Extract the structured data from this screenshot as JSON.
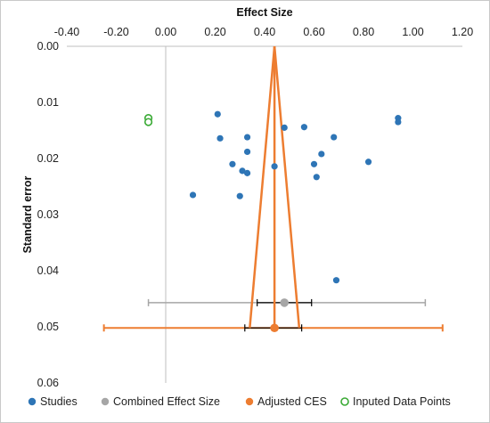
{
  "chart_data": {
    "type": "scatter",
    "title": "",
    "xlabel": "Effect Size",
    "ylabel": "Standard error",
    "xlim": [
      -0.4,
      1.2
    ],
    "ylim": [
      0.0,
      0.06
    ],
    "y_reversed": true,
    "x_axis_position": "top",
    "x_ticks": [
      "-0.40",
      "-0.20",
      "0.00",
      "0.20",
      "0.40",
      "0.60",
      "0.80",
      "1.00",
      "1.20"
    ],
    "y_ticks": [
      "0.00",
      "0.01",
      "0.02",
      "0.03",
      "0.04",
      "0.05",
      "0.06"
    ],
    "grid": false,
    "legend_position": "bottom",
    "colors": {
      "studies": "#2E75B6",
      "combined": "#A6A6A6",
      "adjusted": "#ED7D31",
      "imputed": "#3AAA35",
      "axis": "#bfbfbf",
      "error_bar": "#000000"
    },
    "series": [
      {
        "name": "Studies",
        "marker": "filled-circle",
        "points": [
          [
            0.21,
            0.0121
          ],
          [
            0.22,
            0.0164
          ],
          [
            0.27,
            0.021
          ],
          [
            0.31,
            0.0222
          ],
          [
            0.33,
            0.0162
          ],
          [
            0.33,
            0.0188
          ],
          [
            0.33,
            0.0226
          ],
          [
            0.3,
            0.0267
          ],
          [
            0.11,
            0.0265
          ],
          [
            0.44,
            0.0214
          ],
          [
            0.48,
            0.0145
          ],
          [
            0.56,
            0.0144
          ],
          [
            0.6,
            0.021
          ],
          [
            0.61,
            0.0233
          ],
          [
            0.63,
            0.0192
          ],
          [
            0.68,
            0.0162
          ],
          [
            0.82,
            0.0206
          ],
          [
            0.94,
            0.0128
          ],
          [
            0.94,
            0.0135
          ],
          [
            0.69,
            0.0417
          ]
        ]
      },
      {
        "name": "Combined Effect Size",
        "marker": "filled-circle",
        "points": [
          [
            0.48,
            0.0457
          ]
        ],
        "error_bars": [
          {
            "low": -0.07,
            "high": 1.05
          },
          {
            "low": 0.37,
            "high": 0.59
          }
        ]
      },
      {
        "name": "Adjusted CES",
        "marker": "filled-circle",
        "points": [
          [
            0.44,
            0.0502
          ]
        ],
        "error_bars": [
          {
            "low": -0.25,
            "high": 1.12
          },
          {
            "low": 0.32,
            "high": 0.55
          }
        ],
        "funnel": {
          "apex": [
            0.44,
            0.0
          ],
          "base_left": [
            0.34,
            0.0502
          ],
          "base_right": [
            0.54,
            0.0502
          ]
        }
      },
      {
        "name": "Inputed Data Points",
        "marker": "open-circle",
        "points": [
          [
            -0.07,
            0.0128
          ],
          [
            -0.07,
            0.0135
          ]
        ]
      }
    ]
  }
}
